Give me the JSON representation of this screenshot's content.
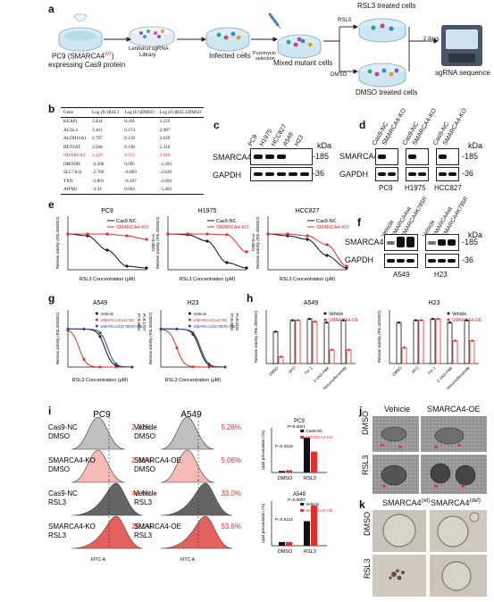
{
  "panel_letters": {
    "a": "a",
    "b": "b",
    "c": "c",
    "d": "d",
    "e": "e",
    "f": "f",
    "g": "g",
    "h": "h",
    "i": "i",
    "j": "j",
    "k": "k"
  },
  "panel_a": {
    "pc9_label": "PC9 (SMARCA4",
    "pc9_sup": "WT",
    "pc9_label_end": ")",
    "pc9_sub": "expressing Cas9 protein",
    "library": "Lentivirul sgRNA\nLibrary",
    "library_l1": "Lentivirul sgRNA",
    "library_l2": "Library",
    "infected": "Infected cells",
    "puromycin_l1": "Puromycin",
    "puromycin_l2": "selection",
    "mixed": "Mixed mutant cells",
    "rsl3_arrow": "RSL3",
    "dmso_arrow": "DMSO",
    "rsl3_treated": "RSL3 treated cells",
    "dmso_treated": "DMSO treated cells",
    "days": "2 days",
    "seq": "sgRNA sequence"
  },
  "panel_b": {
    "headers": [
      "Gene",
      "Log (Fc)RSL3",
      "Log (Fc)DMSO",
      "Log (Fc)RSL3/DMSO"
    ],
    "rows": [
      [
        "KEAP1",
        "3.434",
        "0.201",
        "3.233"
      ],
      [
        "ACSL4",
        "3.161",
        "0.174",
        "2.987"
      ],
      [
        "ALDH16A1",
        "2.797",
        "0.158",
        "2.639"
      ],
      [
        "RETSAT",
        "2.506",
        "0.190",
        "2.316"
      ],
      [
        "SMARCA4",
        "2.128",
        "0.112",
        "2.016"
      ],
      [
        "DHODH",
        "-2.398",
        "0.095",
        "-2.493"
      ],
      [
        "SLC7A11",
        "-2.709",
        "-0.089",
        "-2.620"
      ],
      [
        "TXN",
        "-2.801",
        "-0.107",
        "-2.694"
      ],
      [
        "AIFM2",
        "-3.34",
        "0.063",
        "-3.403"
      ]
    ],
    "highlight_row": 4
  },
  "panel_c": {
    "lanes": [
      "PC9",
      "H1975",
      "HCC827",
      "A549",
      "H23"
    ],
    "rows": [
      "SMARCA4",
      "GAPDH"
    ],
    "kda": "kDa",
    "sizes": [
      "-185",
      "-36"
    ]
  },
  "panel_d": {
    "lanes": [
      "Cas9-NC",
      "SMARCA4-KO",
      "Cas9-NC",
      "SMARCA4-KO",
      "Cas9-NC",
      "SMARCA4-KO"
    ],
    "rows": [
      "SMARCA4",
      "GAPDH"
    ],
    "kda": "kDa",
    "sizes": [
      "-185",
      "-36"
    ],
    "groups": [
      "PC9",
      "H1975",
      "HCC827"
    ]
  },
  "panel_f": {
    "lanes": [
      "Vehicle",
      "SMARCA4wt",
      "SMARCA4K785R",
      "Vehicle",
      "SMARCA4wt",
      "SMARCA4K785R"
    ],
    "rows": [
      "SMARCA4",
      "GAPDH"
    ],
    "kda": "kDa",
    "sizes": [
      "-185",
      "-36"
    ],
    "groups": [
      "A549",
      "H23"
    ]
  },
  "panel_e": {
    "titles": [
      "PC9",
      "H1975",
      "HCC827"
    ],
    "xlabel": "RSL3 Concentration (μM)",
    "ylabel": "Relative viability (RSL3/DMSO)",
    "legend": [
      "Cas9-NC",
      "SMARCA4-KO"
    ],
    "pvals": [
      "P<0.0001",
      "P<0.0001",
      "P=0.0049"
    ]
  },
  "panel_g": {
    "titles": [
      "A549",
      "H23"
    ],
    "xlabel": "RSL3 Concentration (μM)",
    "ylabel": "Relative viability (RSL3/DMSO)",
    "legend": [
      "Vehicle",
      "SMARCA4(wt)-OE",
      "SMARCA4(K785R)-OE"
    ],
    "pvals": [
      "P<0.0001",
      "P<0.0001"
    ],
    "pvals2": [
      "P=0.1767",
      "P=0.0332"
    ]
  },
  "panel_h": {
    "titles": [
      "A549",
      "H23"
    ],
    "ylabel": "Relative viability (RSL3/DMSO)",
    "legend": [
      "Vehicle",
      "SMARCA4-OE"
    ],
    "categories": [
      "DMSO",
      "DFO",
      "Fer-1",
      "Z-VAD-FMK",
      "Necrosulfonamide"
    ]
  },
  "panel_i": {
    "titles": [
      "PC9",
      "A549"
    ],
    "pc9_labels": [
      [
        "Cas9-NC",
        "DMSO"
      ],
      [
        "SMARCA4-KO",
        "DMSO"
      ],
      [
        "Cas9-NC",
        "RSL3"
      ],
      [
        "SMARCA4-KO",
        "RSL3"
      ]
    ],
    "a549_labels": [
      [
        "Vehicle",
        "DMSO"
      ],
      [
        "SMARCA4-OE",
        "DMSO"
      ],
      [
        "Vehicle",
        "RSL3"
      ],
      [
        "SMARCA4-OE",
        "RSL3"
      ]
    ],
    "pc9_pcts": [
      "2.32%",
      "2.66%",
      "46.6%",
      "28.1%"
    ],
    "a549_pcts": [
      "5.28%",
      "5.06%",
      "33.0%",
      "53.6%"
    ],
    "xlabel": "FITC-A",
    "bar1": {
      "title": "PC9",
      "legend": [
        "Cas9-NC",
        "SMARCA4-KO"
      ],
      "pvals": [
        "P<0.0001",
        "P=0.3418"
      ],
      "ylabel": "Lipid peroxidation (%)",
      "cats": [
        "DMSO",
        "RSL3"
      ]
    },
    "bar2": {
      "title": "A549",
      "legend": [
        "Vehicle",
        "SMARCA4-OE"
      ],
      "pvals": [
        "P=0.0007",
        "P=0.5122"
      ],
      "ylabel": "Lipid peroxidation (%)",
      "cats": [
        "DMSO",
        "RSL3"
      ]
    }
  },
  "panel_j": {
    "cols": [
      "Vehicle",
      "SMARCA4-OE"
    ],
    "rows": [
      "DMSO",
      "RSL3"
    ]
  },
  "panel_k": {
    "cols": [
      "SMARCA4(wt)",
      "SMARCA4(def)"
    ],
    "col_base": "SMARCA4",
    "col_sups": [
      "(wt)",
      "(def)"
    ],
    "rows": [
      "DMSO",
      "RSL3"
    ]
  },
  "colors": {
    "red": "#e0302e",
    "black": "#111111",
    "blue": "#2b4a8c",
    "grey": "#9a9a9a"
  },
  "chart_data": [
    {
      "type": "line",
      "title": "PC9",
      "xlabel": "RSL3 Concentration (μM)",
      "ylabel": "Relative viability (RSL3/DMSO)",
      "xscale": "log",
      "ylim": [
        0,
        1.5
      ],
      "series": [
        {
          "name": "Cas9-NC",
          "x": [
            0.001,
            0.01,
            0.1,
            1,
            10
          ],
          "y": [
            1.0,
            0.95,
            0.55,
            0.1,
            0.05
          ]
        },
        {
          "name": "SMARCA4-KO",
          "x": [
            0.001,
            0.01,
            0.1,
            1,
            10
          ],
          "y": [
            1.0,
            1.0,
            1.0,
            0.95,
            0.85
          ]
        }
      ]
    },
    {
      "type": "line",
      "title": "H1975",
      "xlabel": "RSL3 Concentration (μM)",
      "ylabel": "Relative viability (RSL3/DMSO)",
      "xscale": "log",
      "ylim": [
        0,
        1.5
      ],
      "series": [
        {
          "name": "Cas9-NC",
          "x": [
            0.001,
            0.01,
            0.1,
            1,
            10
          ],
          "y": [
            1.0,
            0.98,
            0.8,
            0.2,
            0.05
          ]
        },
        {
          "name": "SMARCA4-KO",
          "x": [
            0.001,
            0.01,
            0.1,
            1,
            10
          ],
          "y": [
            1.0,
            1.0,
            1.0,
            0.98,
            0.5
          ]
        }
      ]
    },
    {
      "type": "line",
      "title": "HCC827",
      "xlabel": "RSL3 Concentration (μM)",
      "ylabel": "Relative viability (RSL3/DMSO)",
      "xscale": "log",
      "ylim": [
        0,
        1.5
      ],
      "series": [
        {
          "name": "Cas9-NC",
          "x": [
            0.001,
            0.01,
            0.1,
            1,
            10
          ],
          "y": [
            1.0,
            0.95,
            0.85,
            0.4,
            0.05
          ]
        },
        {
          "name": "SMARCA4-KO",
          "x": [
            0.001,
            0.01,
            0.1,
            1,
            10
          ],
          "y": [
            1.0,
            1.0,
            0.95,
            0.7,
            0.1
          ]
        }
      ]
    },
    {
      "type": "bar",
      "title": "PC9 lipid peroxidation",
      "ylabel": "Lipid peroxidation (%)",
      "categories": [
        "DMSO",
        "RSL3"
      ],
      "series": [
        {
          "name": "Cas9-NC",
          "values": [
            2,
            47
          ]
        },
        {
          "name": "SMARCA4-KO",
          "values": [
            3,
            28
          ]
        }
      ]
    },
    {
      "type": "bar",
      "title": "A549 lipid peroxidation",
      "ylabel": "Lipid peroxidation (%)",
      "categories": [
        "DMSO",
        "RSL3"
      ],
      "series": [
        {
          "name": "Vehicle",
          "values": [
            5,
            33
          ]
        },
        {
          "name": "SMARCA4-OE",
          "values": [
            5,
            54
          ]
        }
      ]
    }
  ]
}
